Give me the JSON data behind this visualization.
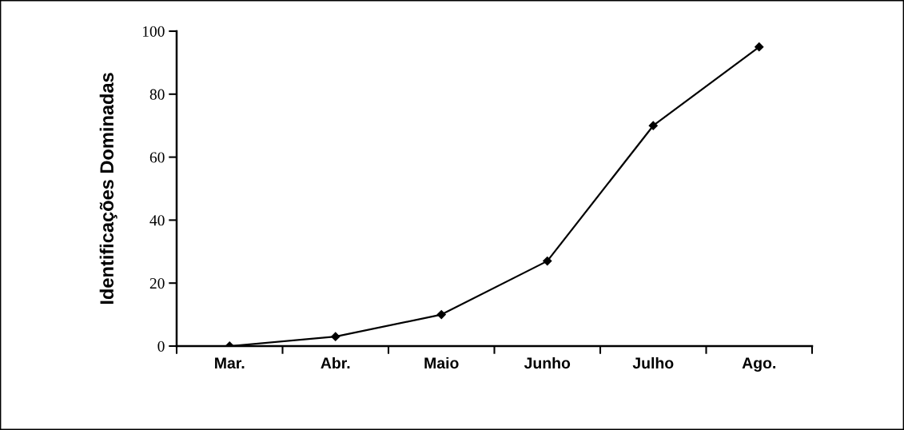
{
  "chart_data": {
    "type": "line",
    "ylabel": "Identificações Dominadas",
    "categories": [
      "Mar.",
      "Abr.",
      "Maio",
      "Junho",
      "Julho",
      "Ago."
    ],
    "series": [
      {
        "color": "#000000",
        "values": [
          0,
          3,
          10,
          27,
          70,
          95
        ]
      }
    ],
    "ylim": [
      0,
      100
    ],
    "yticks": [
      0,
      20,
      40,
      60,
      80,
      100
    ],
    "marker": "diamond",
    "line_style": "solid",
    "grid": false,
    "legend": false
  }
}
